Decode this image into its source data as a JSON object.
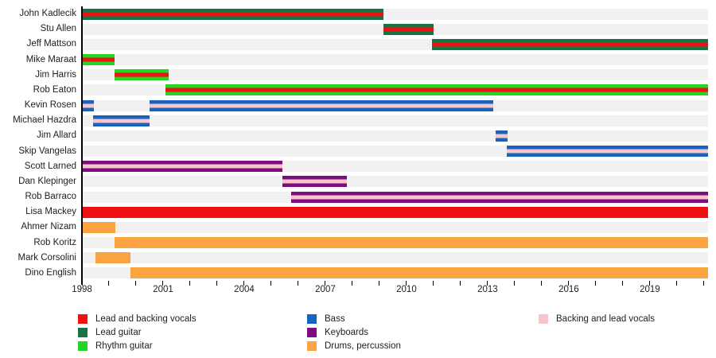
{
  "chart_data": {
    "type": "timeline",
    "description": "Band member tenure timeline (Gantt-style), instrument roles shown as colored bars with role stripes",
    "axis": {
      "start": 1998,
      "end": 2021.15,
      "major_ticks": [
        1998,
        2001,
        2004,
        2007,
        2010,
        2013,
        2016,
        2019
      ],
      "major_tick_labels": [
        "1998",
        "2001",
        "2004",
        "2007",
        "2010",
        "2013",
        "2016",
        "2019"
      ],
      "minor_tick_interval": 1,
      "minor_tick_start": 1998,
      "minor_tick_end": 2021,
      "grid": false
    },
    "colors": {
      "lead_and_backing_vocals": "#ee1111",
      "lead_guitar": "#177245",
      "rhythm_guitar": "#25d425",
      "bass": "#1565c0",
      "keyboards": "#7d0d7d",
      "drums_percussion": "#f9a441",
      "backing_and_lead_vocals": "#f9c5cd",
      "row_track": "#f1f1f1",
      "axis": "#000000",
      "text": "#202122"
    },
    "members": [
      {
        "name": "John Kadlecik",
        "segments": [
          {
            "from": 1998,
            "to": 2009.15,
            "color": "lead_guitar",
            "stripe": "lead_and_backing_vocals"
          }
        ]
      },
      {
        "name": "Stu Allen",
        "segments": [
          {
            "from": 2009.15,
            "to": 2011.0,
            "color": "lead_guitar",
            "stripe": "lead_and_backing_vocals"
          }
        ]
      },
      {
        "name": "Jeff Mattson",
        "segments": [
          {
            "from": 2010.95,
            "to": 2021.15,
            "color": "lead_guitar",
            "stripe": "lead_and_backing_vocals"
          }
        ]
      },
      {
        "name": "Mike Maraat",
        "segments": [
          {
            "from": 1998,
            "to": 1999.2,
            "color": "rhythm_guitar",
            "stripe": "lead_and_backing_vocals"
          }
        ]
      },
      {
        "name": "Jim Harris",
        "segments": [
          {
            "from": 1999.2,
            "to": 2001.2,
            "color": "rhythm_guitar",
            "stripe": "lead_and_backing_vocals"
          }
        ]
      },
      {
        "name": "Rob Eaton",
        "segments": [
          {
            "from": 2001.1,
            "to": 2021.15,
            "color": "rhythm_guitar",
            "stripe": "lead_and_backing_vocals"
          }
        ]
      },
      {
        "name": "Kevin Rosen",
        "segments": [
          {
            "from": 1998,
            "to": 1998.45,
            "color": "bass",
            "stripe": "backing_and_lead_vocals"
          },
          {
            "from": 2000.5,
            "to": 2013.2,
            "color": "bass",
            "stripe": "backing_and_lead_vocals"
          }
        ]
      },
      {
        "name": "Michael Hazdra",
        "segments": [
          {
            "from": 1998.4,
            "to": 2000.5,
            "color": "bass",
            "stripe": "backing_and_lead_vocals"
          }
        ]
      },
      {
        "name": "Jim Allard",
        "segments": [
          {
            "from": 2013.3,
            "to": 2013.75,
            "color": "bass",
            "stripe": "backing_and_lead_vocals"
          }
        ]
      },
      {
        "name": "Skip Vangelas",
        "segments": [
          {
            "from": 2013.7,
            "to": 2021.15,
            "color": "bass",
            "stripe": "backing_and_lead_vocals"
          }
        ]
      },
      {
        "name": "Scott Larned",
        "segments": [
          {
            "from": 1998,
            "to": 2005.4,
            "color": "keyboards",
            "stripe": "backing_and_lead_vocals"
          }
        ]
      },
      {
        "name": "Dan Klepinger",
        "segments": [
          {
            "from": 2005.4,
            "to": 2007.8,
            "color": "keyboards",
            "stripe": "backing_and_lead_vocals"
          }
        ]
      },
      {
        "name": "Rob Barraco",
        "segments": [
          {
            "from": 2005.75,
            "to": 2021.15,
            "color": "keyboards",
            "stripe": "backing_and_lead_vocals"
          }
        ]
      },
      {
        "name": "Lisa Mackey",
        "segments": [
          {
            "from": 1998,
            "to": 2021.15,
            "color": "lead_and_backing_vocals"
          }
        ]
      },
      {
        "name": "Ahmer Nizam",
        "segments": [
          {
            "from": 1998,
            "to": 1999.25,
            "color": "drums_percussion"
          }
        ]
      },
      {
        "name": "Rob Koritz",
        "segments": [
          {
            "from": 1999.2,
            "to": 2021.15,
            "color": "drums_percussion"
          }
        ]
      },
      {
        "name": "Mark Corsolini",
        "segments": [
          {
            "from": 1998.5,
            "to": 1999.8,
            "color": "drums_percussion"
          }
        ]
      },
      {
        "name": "Dino English",
        "segments": [
          {
            "from": 1999.8,
            "to": 2021.15,
            "color": "drums_percussion"
          }
        ]
      }
    ],
    "legend": {
      "position": "bottom",
      "columns": [
        {
          "items": [
            {
              "role": "lead_and_backing_vocals",
              "label": "Lead and backing vocals"
            },
            {
              "role": "lead_guitar",
              "label": "Lead guitar"
            },
            {
              "role": "rhythm_guitar",
              "label": "Rhythm guitar"
            }
          ]
        },
        {
          "items": [
            {
              "role": "bass",
              "label": "Bass"
            },
            {
              "role": "keyboards",
              "label": "Keyboards"
            },
            {
              "role": "drums_percussion",
              "label": "Drums, percussion"
            }
          ]
        },
        {
          "items": [
            {
              "role": "backing_and_lead_vocals",
              "label": "Backing and lead vocals"
            }
          ]
        }
      ]
    }
  }
}
